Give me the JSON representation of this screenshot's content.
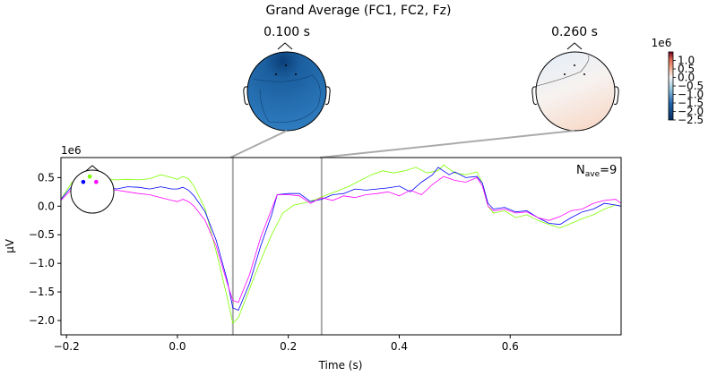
{
  "chart_data": {
    "type": "line",
    "title": "Grand Average (FC1, FC2, Fz)",
    "xlabel": "Time (s)",
    "ylabel": "µV",
    "y_scale_label": "1e6",
    "xlim": [
      -0.21,
      0.8
    ],
    "ylim": [
      -2.25,
      0.85
    ],
    "x_ticks": [
      -0.2,
      0.0,
      0.2,
      0.4,
      0.6
    ],
    "x_tick_labels": [
      "−0.2",
      "0.0",
      "0.2",
      "0.4",
      "0.6"
    ],
    "y_ticks": [
      0.5,
      0.0,
      -0.5,
      -1.0,
      -1.5,
      -2.0
    ],
    "y_tick_labels": [
      "0.5",
      "0.0",
      "−0.5",
      "−1.0",
      "−1.5",
      "−2.0"
    ],
    "nave_main": "N",
    "nave_sub": "ave",
    "nave_value": "=9",
    "series": [
      {
        "color": "#7fff00",
        "points": [
          [
            -0.21,
            0.12
          ],
          [
            -0.19,
            0.42
          ],
          [
            -0.17,
            0.48
          ],
          [
            -0.15,
            0.45
          ],
          [
            -0.13,
            0.47
          ],
          [
            -0.11,
            0.46
          ],
          [
            -0.09,
            0.47
          ],
          [
            -0.07,
            0.46
          ],
          [
            -0.05,
            0.48
          ],
          [
            -0.03,
            0.55
          ],
          [
            -0.01,
            0.5
          ],
          [
            0.0,
            0.47
          ],
          [
            0.01,
            0.52
          ],
          [
            0.02,
            0.48
          ],
          [
            0.03,
            0.35
          ],
          [
            0.05,
            -0.05
          ],
          [
            0.07,
            -0.8
          ],
          [
            0.09,
            -1.6
          ],
          [
            0.1,
            -2.05
          ],
          [
            0.11,
            -1.95
          ],
          [
            0.13,
            -1.45
          ],
          [
            0.15,
            -0.95
          ],
          [
            0.17,
            -0.5
          ],
          [
            0.19,
            -0.12
          ],
          [
            0.21,
            0.02
          ],
          [
            0.23,
            0.06
          ],
          [
            0.25,
            0.12
          ],
          [
            0.27,
            0.2
          ],
          [
            0.29,
            0.27
          ],
          [
            0.31,
            0.35
          ],
          [
            0.33,
            0.45
          ],
          [
            0.35,
            0.55
          ],
          [
            0.37,
            0.62
          ],
          [
            0.39,
            0.58
          ],
          [
            0.41,
            0.62
          ],
          [
            0.43,
            0.68
          ],
          [
            0.45,
            0.58
          ],
          [
            0.47,
            0.62
          ],
          [
            0.48,
            0.72
          ],
          [
            0.5,
            0.58
          ],
          [
            0.52,
            0.55
          ],
          [
            0.54,
            0.6
          ],
          [
            0.55,
            0.4
          ],
          [
            0.56,
            0.0
          ],
          [
            0.57,
            -0.12
          ],
          [
            0.59,
            -0.08
          ],
          [
            0.61,
            -0.2
          ],
          [
            0.63,
            -0.15
          ],
          [
            0.65,
            -0.25
          ],
          [
            0.67,
            -0.32
          ],
          [
            0.69,
            -0.38
          ],
          [
            0.71,
            -0.3
          ],
          [
            0.73,
            -0.22
          ],
          [
            0.75,
            -0.15
          ],
          [
            0.77,
            -0.05
          ],
          [
            0.79,
            0.02
          ],
          [
            0.8,
            0.0
          ]
        ]
      },
      {
        "color": "#0000ff",
        "points": [
          [
            -0.21,
            0.12
          ],
          [
            -0.19,
            0.35
          ],
          [
            -0.17,
            0.32
          ],
          [
            -0.15,
            0.34
          ],
          [
            -0.13,
            0.35
          ],
          [
            -0.11,
            0.3
          ],
          [
            -0.09,
            0.34
          ],
          [
            -0.07,
            0.33
          ],
          [
            -0.05,
            0.3
          ],
          [
            -0.03,
            0.34
          ],
          [
            -0.01,
            0.3
          ],
          [
            0.0,
            0.3
          ],
          [
            0.01,
            0.33
          ],
          [
            0.02,
            0.28
          ],
          [
            0.03,
            0.18
          ],
          [
            0.05,
            -0.1
          ],
          [
            0.07,
            -0.6
          ],
          [
            0.09,
            -1.3
          ],
          [
            0.1,
            -1.78
          ],
          [
            0.11,
            -1.82
          ],
          [
            0.13,
            -1.35
          ],
          [
            0.15,
            -0.7
          ],
          [
            0.17,
            -0.15
          ],
          [
            0.18,
            0.2
          ],
          [
            0.2,
            0.22
          ],
          [
            0.22,
            0.22
          ],
          [
            0.24,
            0.08
          ],
          [
            0.26,
            0.12
          ],
          [
            0.28,
            0.2
          ],
          [
            0.3,
            0.22
          ],
          [
            0.32,
            0.3
          ],
          [
            0.34,
            0.28
          ],
          [
            0.36,
            0.3
          ],
          [
            0.38,
            0.32
          ],
          [
            0.4,
            0.35
          ],
          [
            0.42,
            0.25
          ],
          [
            0.44,
            0.42
          ],
          [
            0.46,
            0.55
          ],
          [
            0.47,
            0.68
          ],
          [
            0.49,
            0.55
          ],
          [
            0.5,
            0.6
          ],
          [
            0.52,
            0.5
          ],
          [
            0.54,
            0.52
          ],
          [
            0.55,
            0.4
          ],
          [
            0.56,
            0.05
          ],
          [
            0.57,
            -0.05
          ],
          [
            0.59,
            -0.02
          ],
          [
            0.61,
            -0.1
          ],
          [
            0.63,
            -0.08
          ],
          [
            0.65,
            -0.2
          ],
          [
            0.67,
            -0.3
          ],
          [
            0.69,
            -0.32
          ],
          [
            0.71,
            -0.2
          ],
          [
            0.73,
            -0.1
          ],
          [
            0.75,
            -0.05
          ],
          [
            0.77,
            0.05
          ],
          [
            0.79,
            0.02
          ],
          [
            0.8,
            0.0
          ]
        ]
      },
      {
        "color": "#ff00ff",
        "points": [
          [
            -0.21,
            0.1
          ],
          [
            -0.19,
            0.3
          ],
          [
            -0.17,
            0.35
          ],
          [
            -0.15,
            0.32
          ],
          [
            -0.13,
            0.3
          ],
          [
            -0.11,
            0.28
          ],
          [
            -0.09,
            0.25
          ],
          [
            -0.07,
            0.22
          ],
          [
            -0.05,
            0.2
          ],
          [
            -0.03,
            0.15
          ],
          [
            -0.01,
            0.1
          ],
          [
            0.0,
            0.08
          ],
          [
            0.01,
            0.12
          ],
          [
            0.02,
            0.08
          ],
          [
            0.03,
            0.0
          ],
          [
            0.05,
            -0.25
          ],
          [
            0.07,
            -0.7
          ],
          [
            0.09,
            -1.35
          ],
          [
            0.1,
            -1.65
          ],
          [
            0.11,
            -1.68
          ],
          [
            0.13,
            -1.2
          ],
          [
            0.15,
            -0.55
          ],
          [
            0.17,
            -0.05
          ],
          [
            0.18,
            0.2
          ],
          [
            0.2,
            0.2
          ],
          [
            0.22,
            0.18
          ],
          [
            0.24,
            0.05
          ],
          [
            0.26,
            0.15
          ],
          [
            0.28,
            0.1
          ],
          [
            0.3,
            0.18
          ],
          [
            0.32,
            0.15
          ],
          [
            0.34,
            0.2
          ],
          [
            0.36,
            0.22
          ],
          [
            0.38,
            0.25
          ],
          [
            0.4,
            0.18
          ],
          [
            0.42,
            0.28
          ],
          [
            0.44,
            0.2
          ],
          [
            0.46,
            0.38
          ],
          [
            0.48,
            0.52
          ],
          [
            0.5,
            0.45
          ],
          [
            0.52,
            0.42
          ],
          [
            0.54,
            0.5
          ],
          [
            0.55,
            0.35
          ],
          [
            0.56,
            0.0
          ],
          [
            0.57,
            -0.08
          ],
          [
            0.59,
            -0.05
          ],
          [
            0.61,
            -0.12
          ],
          [
            0.63,
            -0.1
          ],
          [
            0.65,
            -0.2
          ],
          [
            0.67,
            -0.25
          ],
          [
            0.69,
            -0.18
          ],
          [
            0.71,
            -0.08
          ],
          [
            0.73,
            -0.05
          ],
          [
            0.75,
            0.05
          ],
          [
            0.77,
            0.1
          ],
          [
            0.79,
            0.12
          ],
          [
            0.8,
            0.05
          ]
        ]
      }
    ],
    "sensor_dots": [
      {
        "color": "#0000ff",
        "nx": -0.42,
        "ny": 0.45
      },
      {
        "color": "#7fff00",
        "nx": -0.12,
        "ny": 0.7
      },
      {
        "color": "#ff00ff",
        "nx": 0.18,
        "ny": 0.45
      }
    ],
    "topomaps": [
      {
        "label": "0.100 s",
        "time": 0.1
      },
      {
        "label": "0.260 s",
        "time": 0.26
      }
    ],
    "colorbar": {
      "scale_label": "1e6",
      "vmin": -2.5,
      "vmax": 1.5,
      "ticks": [
        1.0,
        0.5,
        0.0,
        -0.5,
        -1.0,
        -1.5,
        -2.0,
        -2.5
      ],
      "tick_labels": [
        "1.0",
        "0.5",
        "0.0",
        "−0.5",
        "−1.0",
        "−1.5",
        "−2.0",
        "−2.5"
      ]
    }
  }
}
